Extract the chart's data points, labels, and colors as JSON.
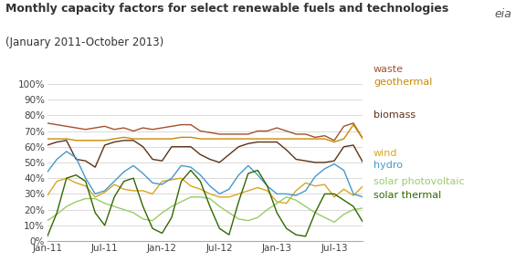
{
  "title": "Monthly capacity factors for select renewable fuels and technologies",
  "subtitle": "(January 2011-October 2013)",
  "x_labels": [
    "Jan-11",
    "Jul-11",
    "Jan-12",
    "Jul-12",
    "Jan-13",
    "Jul-13"
  ],
  "x_tick_positions": [
    0,
    6,
    12,
    18,
    24,
    30
  ],
  "series": {
    "waste": {
      "color": "#a0522d",
      "values": [
        75,
        74,
        73,
        72,
        71,
        72,
        73,
        71,
        72,
        70,
        72,
        71,
        72,
        73,
        74,
        74,
        70,
        69,
        68,
        68,
        68,
        68,
        70,
        70,
        72,
        70,
        68,
        68,
        66,
        67,
        64,
        73,
        75,
        65
      ]
    },
    "geothermal": {
      "color": "#cc8800",
      "values": [
        65,
        65,
        65,
        64,
        64,
        64,
        64,
        65,
        66,
        65,
        65,
        65,
        65,
        65,
        66,
        66,
        65,
        65,
        65,
        65,
        65,
        65,
        65,
        65,
        65,
        65,
        65,
        65,
        65,
        65,
        63,
        65,
        74,
        65
      ]
    },
    "biomass": {
      "color": "#5c3317",
      "values": [
        61,
        63,
        64,
        52,
        51,
        47,
        61,
        63,
        64,
        64,
        60,
        52,
        51,
        60,
        60,
        60,
        55,
        52,
        50,
        55,
        60,
        62,
        63,
        63,
        63,
        58,
        52,
        51,
        50,
        50,
        51,
        60,
        61,
        50
      ]
    },
    "wind": {
      "color": "#daa520",
      "values": [
        29,
        38,
        40,
        37,
        35,
        28,
        31,
        36,
        33,
        32,
        32,
        30,
        38,
        39,
        40,
        35,
        33,
        30,
        28,
        28,
        30,
        32,
        34,
        32,
        25,
        24,
        32,
        37,
        35,
        36,
        28,
        33,
        29,
        35
      ]
    },
    "hydro": {
      "color": "#4499cc",
      "values": [
        44,
        52,
        57,
        53,
        40,
        30,
        32,
        38,
        44,
        48,
        43,
        37,
        36,
        40,
        48,
        47,
        42,
        35,
        30,
        33,
        42,
        48,
        42,
        35,
        30,
        30,
        29,
        32,
        41,
        46,
        49,
        45,
        30,
        28
      ]
    },
    "solar_photovoltaic": {
      "color": "#99cc66",
      "values": [
        13,
        17,
        22,
        25,
        27,
        27,
        24,
        22,
        20,
        18,
        14,
        13,
        18,
        22,
        25,
        28,
        28,
        27,
        22,
        18,
        14,
        13,
        15,
        20,
        24,
        28,
        26,
        22,
        18,
        15,
        12,
        17,
        20,
        21
      ]
    },
    "solar_thermal": {
      "color": "#336600",
      "values": [
        3,
        18,
        40,
        42,
        38,
        18,
        10,
        28,
        38,
        40,
        22,
        8,
        5,
        15,
        38,
        45,
        38,
        22,
        8,
        4,
        25,
        43,
        45,
        35,
        18,
        8,
        4,
        3,
        18,
        30,
        30,
        26,
        22,
        12
      ]
    }
  },
  "legend": [
    {
      "label": "waste",
      "color": "#a0522d"
    },
    {
      "label": "geothermal",
      "color": "#cc8800"
    },
    {
      "label": "biomass",
      "color": "#5c3317"
    },
    {
      "label": "wind",
      "color": "#daa520"
    },
    {
      "label": "hydro",
      "color": "#4499cc"
    },
    {
      "label": "solar photovoltaic",
      "color": "#99cc66"
    },
    {
      "label": "solar thermal",
      "color": "#336600"
    }
  ],
  "ylim": [
    0,
    100
  ],
  "yticks": [
    0,
    10,
    20,
    30,
    40,
    50,
    60,
    70,
    80,
    90,
    100
  ],
  "bg_color": "#ffffff",
  "title_fontsize": 9,
  "subtitle_fontsize": 8.5,
  "axis_label_fontsize": 7.5,
  "legend_fontsize": 8
}
